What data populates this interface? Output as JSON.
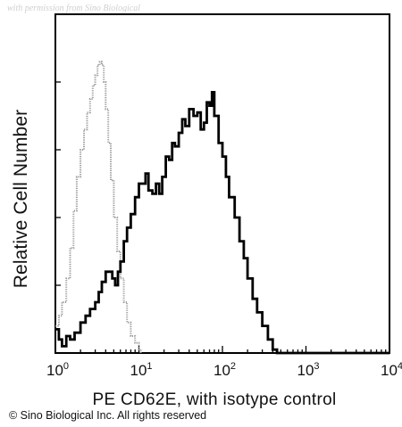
{
  "watermark": "with permission from Sino Biological",
  "copyright": "© Sino Biological Inc. All rights reserved",
  "chart_data": {
    "type": "line",
    "xlabel": "PE CD62E, with isotype control",
    "ylabel": "Relative Cell Number",
    "x_scale": "log",
    "xlim": [
      1,
      10000
    ],
    "ylim": [
      0,
      100
    ],
    "x_ticks": [
      {
        "base": "10",
        "exp": "0"
      },
      {
        "base": "10",
        "exp": "1"
      },
      {
        "base": "10",
        "exp": "2"
      },
      {
        "base": "10",
        "exp": "3"
      },
      {
        "base": "10",
        "exp": "4"
      }
    ],
    "grid": false,
    "series": [
      {
        "style": "dotted-gray",
        "color": "#9a9a9a",
        "x": [
          1.0,
          1.1,
          1.2,
          1.35,
          1.5,
          1.65,
          1.8,
          2.0,
          2.2,
          2.4,
          2.6,
          2.8,
          3.0,
          3.2,
          3.4,
          3.6,
          3.8,
          4.0,
          4.3,
          4.6,
          5.0,
          5.5,
          6.0,
          6.6,
          7.2,
          8.0,
          9.0,
          10.0,
          10.5
        ],
        "y": [
          8,
          11,
          15,
          22,
          31,
          42,
          52,
          60,
          66,
          71,
          75,
          79,
          82,
          85,
          86,
          85,
          80,
          72,
          62,
          51,
          40,
          30,
          22,
          15,
          9,
          5,
          3,
          1,
          0
        ]
      },
      {
        "style": "solid-black",
        "color": "#000000",
        "x": [
          1.0,
          1.1,
          1.2,
          1.35,
          1.5,
          1.7,
          2.0,
          2.3,
          2.6,
          3.0,
          3.3,
          3.6,
          4.0,
          4.4,
          4.8,
          5.2,
          5.6,
          6.0,
          6.6,
          7.2,
          8.0,
          9.0,
          10.0,
          11.0,
          12.0,
          13.0,
          14.5,
          16.0,
          17.5,
          19.0,
          21.0,
          23.0,
          25.0,
          27.0,
          30.0,
          33.0,
          36.0,
          40.0,
          45.0,
          50.0,
          55.0,
          60.0,
          65.0,
          70.0,
          75.0,
          80.0,
          90.0,
          100.0,
          110.0,
          120.0,
          140.0,
          160.0,
          180.0,
          200.0,
          230.0,
          260.0,
          300.0,
          350.0,
          400.0,
          450.0,
          500.0,
          700.0,
          1000.0,
          2000.0,
          5000.0,
          10000.0
        ],
        "y": [
          7,
          4,
          2,
          5,
          4,
          6,
          9,
          11,
          13,
          15,
          18,
          21,
          24,
          24,
          22,
          20,
          24,
          27,
          33,
          37,
          41,
          46,
          50,
          50,
          53,
          48,
          47,
          50,
          47,
          52,
          58,
          57,
          62,
          61,
          65,
          69,
          67,
          72,
          70,
          71,
          66,
          68,
          74,
          73,
          77,
          70,
          62,
          58,
          52,
          46,
          40,
          33,
          28,
          22,
          16,
          12,
          8,
          4,
          1,
          0,
          0,
          0,
          0,
          0,
          0,
          0
        ]
      }
    ]
  }
}
